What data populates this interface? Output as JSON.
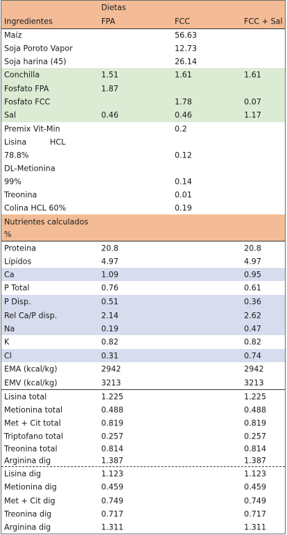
{
  "header": {
    "dietas": "Dietas",
    "ingredientes": "Ingredientes",
    "columns": [
      "FPA",
      "FCC",
      "FCC + Sal"
    ]
  },
  "ingredients": [
    {
      "name": "Maíz",
      "fpa": "",
      "fcc": "56.63",
      "fcc_sal": ""
    },
    {
      "name": "Soja Poroto Vapor",
      "fpa": "",
      "fcc": "12.73",
      "fcc_sal": ""
    },
    {
      "name": "Soja harina (45)",
      "fpa": "",
      "fcc": "26.14",
      "fcc_sal": ""
    },
    {
      "name": "Conchilla",
      "fpa": "1.51",
      "fcc": "1.61",
      "fcc_sal": "1.61"
    },
    {
      "name": "Fosfato FPA",
      "fpa": "1.87",
      "fcc": "",
      "fcc_sal": ""
    },
    {
      "name": "Fosfato FCC",
      "fpa": "",
      "fcc": "1.78",
      "fcc_sal": "0.07"
    },
    {
      "name": "Sal",
      "fpa": "0.46",
      "fcc": "0.46",
      "fcc_sal": "1.17"
    },
    {
      "name": "Premix Vit-Min",
      "fpa": "",
      "fcc": "0.2",
      "fcc_sal": ""
    },
    {
      "name": "Lisina",
      "name2": "HCL",
      "fpa": "",
      "fcc": "",
      "fcc_sal": ""
    },
    {
      "name": "78.8%",
      "fpa": "",
      "fcc": "0.12",
      "fcc_sal": ""
    },
    {
      "name": "DL-Metionina",
      "fpa": "",
      "fcc": "",
      "fcc_sal": ""
    },
    {
      "name": "99%",
      "fpa": "",
      "fcc": "0.14",
      "fcc_sal": ""
    },
    {
      "name": "Treonina",
      "fpa": "",
      "fcc": "0.01",
      "fcc_sal": ""
    },
    {
      "name": "Colina HCL 60%",
      "fpa": "",
      "fcc": "0.19",
      "fcc_sal": ""
    }
  ],
  "nutrients_header": {
    "line1": "Nutrientes   calculados",
    "line2": "%"
  },
  "nutrients": [
    {
      "name": "Proteina",
      "fpa": "20.8",
      "fcc": "",
      "fcc_sal": "20.8"
    },
    {
      "name": "Lípidos",
      "fpa": "4.97",
      "fcc": "",
      "fcc_sal": "4.97"
    },
    {
      "name": "Ca",
      "fpa": "1.09",
      "fcc": "",
      "fcc_sal": "0.95"
    },
    {
      "name": "P Total",
      "fpa": "0.76",
      "fcc": "",
      "fcc_sal": "0.61"
    },
    {
      "name": "P Disp.",
      "fpa": "0.51",
      "fcc": "",
      "fcc_sal": "0.36"
    },
    {
      "name": "Rel Ca/P disp.",
      "fpa": "2.14",
      "fcc": "",
      "fcc_sal": "2.62"
    },
    {
      "name": "Na",
      "fpa": "0.19",
      "fcc": "",
      "fcc_sal": "0.47"
    },
    {
      "name": "K",
      "fpa": "0.82",
      "fcc": "",
      "fcc_sal": "0.82"
    },
    {
      "name": "Cl",
      "fpa": "0.31",
      "fcc": "",
      "fcc_sal": "0.74"
    },
    {
      "name": "EMA (kcal/kg)",
      "fpa": "2942",
      "fcc": "",
      "fcc_sal": "2942"
    },
    {
      "name": "EMV (kcal/kg)",
      "fpa": "3213",
      "fcc": "",
      "fcc_sal": "3213"
    }
  ],
  "aminoacids_total": [
    {
      "name": "Lisina total",
      "fpa": "1.225",
      "fcc": "",
      "fcc_sal": "1.225"
    },
    {
      "name": "Metionina total",
      "fpa": "0.488",
      "fcc": "",
      "fcc_sal": "0.488"
    },
    {
      "name": "Met + Cit total",
      "fpa": "0.819",
      "fcc": "",
      "fcc_sal": "0.819"
    },
    {
      "name": "Triptofano total",
      "fpa": "0.257",
      "fcc": "",
      "fcc_sal": "0.257"
    },
    {
      "name": "Treonina total",
      "fpa": "0.814",
      "fcc": "",
      "fcc_sal": "0.814"
    },
    {
      "name": "Arginina dig",
      "fpa": "1.387",
      "fcc": "",
      "fcc_sal": "1.387"
    }
  ],
  "aminoacids_dig": [
    {
      "name": "Lisina dig",
      "fpa": "1.123",
      "fcc": "",
      "fcc_sal": "1.123"
    },
    {
      "name": "Metionina dig",
      "fpa": "0.459",
      "fcc": "",
      "fcc_sal": "0.459"
    },
    {
      "name": "Met + Cit dig",
      "fpa": "0.749",
      "fcc": "",
      "fcc_sal": "0.749"
    },
    {
      "name": "Treonina dig",
      "fpa": "0.717",
      "fcc": "",
      "fcc_sal": "0.717"
    },
    {
      "name": "Arginina dig",
      "fpa": "1.311",
      "fcc": "",
      "fcc_sal": "1.311"
    }
  ],
  "colors": {
    "header": "#f4bc96",
    "minerals": "#dcebd4",
    "highlight": "#d7ddee"
  }
}
